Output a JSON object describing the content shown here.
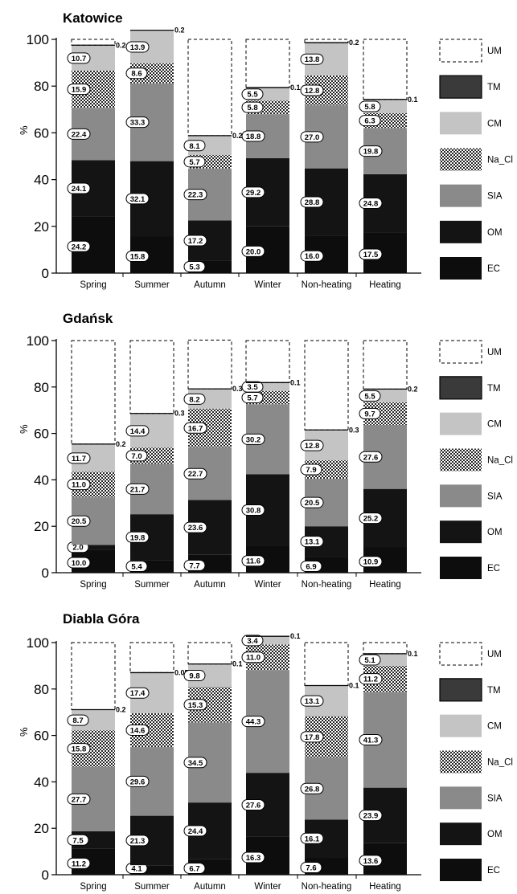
{
  "colors": {
    "EC": "#0d0d0d",
    "OM": "#141414",
    "SIA": "#8a8a8a",
    "Na_Cl": "checker",
    "CM": "#c4c4c4",
    "TM": "#3a3a3a",
    "UM": "dashed-outline"
  },
  "legend": [
    "UM",
    "TM",
    "CM",
    "Na_Cl",
    "SIA",
    "OM",
    "EC"
  ],
  "ylabel": "%",
  "categories": [
    "Spring",
    "Summer",
    "Autumn",
    "Winter",
    "Non-heating",
    "Heating"
  ],
  "chart_data": [
    {
      "type": "bar",
      "stacked": true,
      "title": "Katowice",
      "ylabel": "%",
      "ylim": [
        0,
        100
      ],
      "yticks": [
        0,
        20,
        40,
        60,
        80,
        100
      ],
      "categories": [
        "Spring",
        "Summer",
        "Autumn",
        "Winter",
        "Non-heating",
        "Heating"
      ],
      "series": [
        {
          "name": "EC",
          "values": [
            24.2,
            15.8,
            5.3,
            20.0,
            16.0,
            17.5
          ]
        },
        {
          "name": "OM",
          "values": [
            24.1,
            32.1,
            17.2,
            29.2,
            28.8,
            24.8
          ]
        },
        {
          "name": "SIA",
          "values": [
            22.4,
            33.3,
            22.3,
            18.8,
            27.0,
            19.8
          ]
        },
        {
          "name": "Na_Cl",
          "values": [
            15.9,
            8.6,
            5.7,
            5.8,
            12.8,
            6.3
          ]
        },
        {
          "name": "CM",
          "values": [
            10.7,
            13.9,
            8.1,
            5.5,
            13.8,
            5.8
          ]
        },
        {
          "name": "TM",
          "values": [
            0.2,
            0.2,
            0.2,
            0.1,
            0.2,
            0.1
          ]
        },
        {
          "name": "UM",
          "values": [
            2.5,
            0,
            41.2,
            20.6,
            1.4,
            25.7
          ]
        }
      ]
    },
    {
      "type": "bar",
      "stacked": true,
      "title": "Gdańsk",
      "ylabel": "%",
      "ylim": [
        0,
        100
      ],
      "yticks": [
        0,
        20,
        40,
        60,
        80,
        100
      ],
      "categories": [
        "Spring",
        "Summer",
        "Autumn",
        "Winter",
        "Non-heating",
        "Heating"
      ],
      "series": [
        {
          "name": "EC",
          "values": [
            10.0,
            5.4,
            7.7,
            11.6,
            6.9,
            10.9
          ]
        },
        {
          "name": "OM",
          "values": [
            2.0,
            19.8,
            23.6,
            30.8,
            13.1,
            25.2
          ]
        },
        {
          "name": "SIA",
          "values": [
            20.5,
            21.7,
            22.7,
            30.2,
            20.5,
            27.6
          ]
        },
        {
          "name": "Na_Cl",
          "values": [
            11.0,
            7.0,
            16.7,
            5.7,
            7.9,
            9.7
          ]
        },
        {
          "name": "CM",
          "values": [
            11.7,
            14.4,
            8.2,
            3.5,
            12.8,
            5.5
          ]
        },
        {
          "name": "TM",
          "values": [
            0.2,
            0.3,
            0.3,
            0.1,
            0.3,
            0.2
          ]
        },
        {
          "name": "UM",
          "values": [
            44.6,
            31.4,
            21.0,
            18.1,
            38.5,
            20.9
          ]
        }
      ]
    },
    {
      "type": "bar",
      "stacked": true,
      "title": "Diabla Góra",
      "ylabel": "%",
      "ylim": [
        0,
        100
      ],
      "yticks": [
        0,
        20,
        40,
        60,
        80,
        100
      ],
      "categories": [
        "Spring",
        "Summer",
        "Autumn",
        "Winter",
        "Non-heating",
        "Heating"
      ],
      "series": [
        {
          "name": "EC",
          "values": [
            11.2,
            4.1,
            6.7,
            16.3,
            7.6,
            13.6
          ]
        },
        {
          "name": "OM",
          "values": [
            7.5,
            21.3,
            24.4,
            27.6,
            16.1,
            23.9
          ]
        },
        {
          "name": "SIA",
          "values": [
            27.7,
            29.6,
            34.5,
            44.3,
            26.8,
            41.3
          ]
        },
        {
          "name": "Na_Cl",
          "values": [
            15.8,
            14.6,
            15.3,
            11.0,
            17.8,
            11.2
          ]
        },
        {
          "name": "CM",
          "values": [
            8.7,
            17.4,
            9.8,
            3.4,
            13.1,
            5.1
          ]
        },
        {
          "name": "TM",
          "values": [
            0.2,
            0.05,
            0.1,
            0.1,
            0.1,
            0.1
          ]
        },
        {
          "name": "UM",
          "values": [
            28.9,
            12.95,
            9.2,
            0,
            18.5,
            4.8
          ]
        }
      ]
    }
  ]
}
